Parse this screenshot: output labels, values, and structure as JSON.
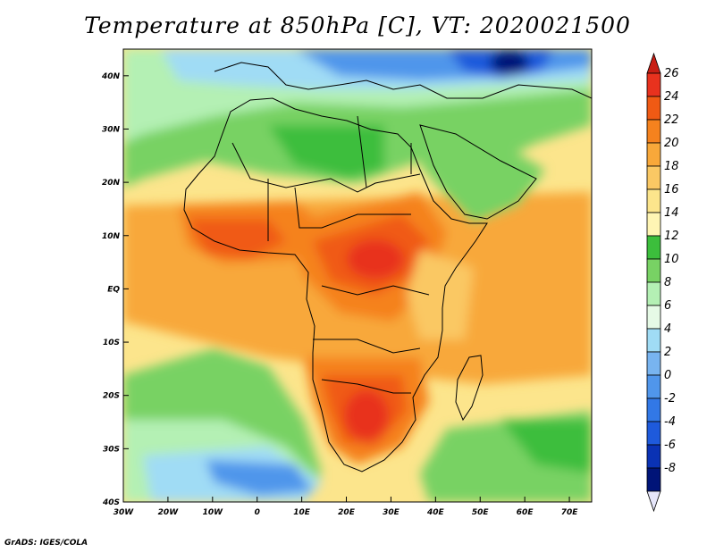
{
  "title": "Temperature at 850hPa [C], VT: 2020021500",
  "credit": "GrADS: IGES/COLA",
  "map": {
    "lon_range": [
      -30,
      75
    ],
    "lat_range": [
      -40,
      45
    ],
    "lon_ticks": [
      {
        "value": -30,
        "label": "30W"
      },
      {
        "value": -20,
        "label": "20W"
      },
      {
        "value": -10,
        "label": "10W"
      },
      {
        "value": 0,
        "label": "0"
      },
      {
        "value": 10,
        "label": "10E"
      },
      {
        "value": 20,
        "label": "20E"
      },
      {
        "value": 30,
        "label": "30E"
      },
      {
        "value": 40,
        "label": "40E"
      },
      {
        "value": 50,
        "label": "50E"
      },
      {
        "value": 60,
        "label": "60E"
      },
      {
        "value": 70,
        "label": "70E"
      }
    ],
    "lat_ticks": [
      {
        "value": 40,
        "label": "40N"
      },
      {
        "value": 30,
        "label": "30N"
      },
      {
        "value": 20,
        "label": "20N"
      },
      {
        "value": 10,
        "label": "10N"
      },
      {
        "value": 0,
        "label": "EQ"
      },
      {
        "value": -10,
        "label": "10S"
      },
      {
        "value": -20,
        "label": "20S"
      },
      {
        "value": -30,
        "label": "30S"
      },
      {
        "value": -40,
        "label": "40S"
      }
    ]
  },
  "colorbar": {
    "levels": [
      {
        "label": "26",
        "color": "#e8321e"
      },
      {
        "label": "24",
        "color": "#f05a14"
      },
      {
        "label": "22",
        "color": "#f5821e"
      },
      {
        "label": "20",
        "color": "#f8a83a"
      },
      {
        "label": "18",
        "color": "#fac864"
      },
      {
        "label": "16",
        "color": "#fce58c"
      },
      {
        "label": "14",
        "color": "#fff5b4"
      },
      {
        "label": "12",
        "color": "#3cbe3c"
      },
      {
        "label": "10",
        "color": "#78d264"
      },
      {
        "label": "8",
        "color": "#b4f0b4"
      },
      {
        "label": "6",
        "color": "#e6fae6"
      },
      {
        "label": "4",
        "color": "#a0dcf5"
      },
      {
        "label": "2",
        "color": "#78b4f0"
      },
      {
        "label": "0",
        "color": "#5096eb"
      },
      {
        "label": "-2",
        "color": "#3278e6"
      },
      {
        "label": "-4",
        "color": "#1e5adc"
      },
      {
        "label": "-6",
        "color": "#0a32b4"
      },
      {
        "label": "-8",
        "color": "#001478"
      }
    ],
    "top_color": "#c81e14",
    "bottom_color": "#e6e6fa"
  },
  "colors": {
    "ocean_background": "#fce58c",
    "very_hot": "#e8321e",
    "hot": "#f05a14",
    "warm": "#f5821e",
    "mild": "#f8a83a",
    "cool_green": "#78d264",
    "green": "#3cbe3c",
    "pale_green": "#b4f0b4",
    "light_blue": "#a0dcf5",
    "blue": "#5096eb",
    "dark_blue": "#1e5adc",
    "navy": "#001478",
    "coast": "#000000"
  }
}
